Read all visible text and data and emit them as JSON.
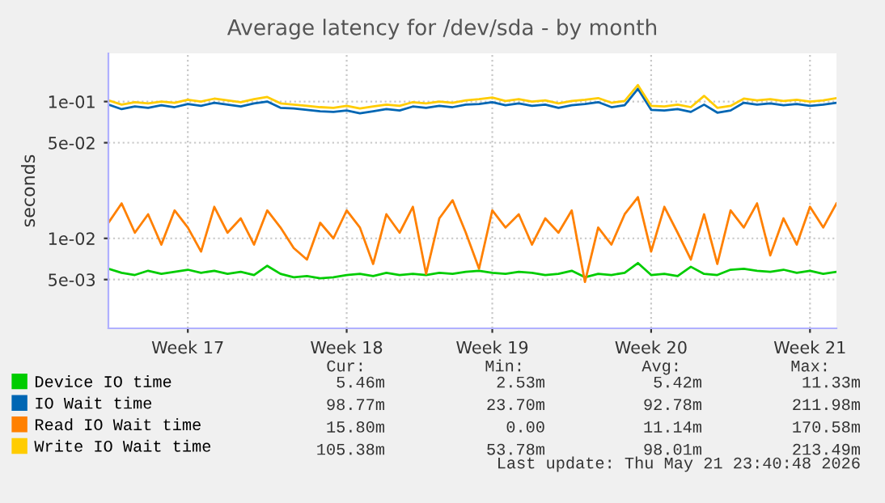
{
  "chart_data": {
    "type": "line",
    "title": "Average latency for /dev/sda - by month",
    "ylabel": "seconds",
    "log": "y",
    "grid": true,
    "legend": "bottom left",
    "marker": "none",
    "line_style": "solid",
    "categories": [
      null,
      null,
      null,
      null,
      null,
      null,
      "Week 17",
      null,
      null,
      null,
      null,
      null,
      null,
      null,
      null,
      null,
      null,
      null,
      "Week 18",
      null,
      null,
      null,
      null,
      null,
      null,
      null,
      null,
      null,
      null,
      "Week 19",
      null,
      null,
      null,
      null,
      null,
      null,
      null,
      null,
      null,
      null,
      null,
      "Week 20",
      null,
      null,
      null,
      null,
      null,
      null,
      null,
      null,
      null,
      null,
      null,
      "Week 21",
      null,
      null
    ],
    "ylim": [
      0.0022,
      0.225
    ],
    "yticks": [
      {
        "value": 0.005,
        "label": "5e-03"
      },
      {
        "value": 0.01,
        "label": "1e-02"
      },
      {
        "value": 0.05,
        "label": "5e-02"
      },
      {
        "value": 0.1,
        "label": "1e-01"
      }
    ],
    "series": [
      {
        "name": "Device IO time",
        "color": "#00cc00",
        "values": [
          0.006,
          0.0056,
          0.0054,
          0.0058,
          0.0055,
          0.0057,
          0.0059,
          0.0056,
          0.0058,
          0.0055,
          0.0057,
          0.0054,
          0.0063,
          0.0055,
          0.0052,
          0.0053,
          0.0051,
          0.0052,
          0.0054,
          0.0055,
          0.0053,
          0.0056,
          0.0054,
          0.0055,
          0.0054,
          0.0056,
          0.0055,
          0.0057,
          0.0058,
          0.0056,
          0.0055,
          0.0057,
          0.0056,
          0.0054,
          0.0055,
          0.0058,
          0.0052,
          0.0055,
          0.0054,
          0.0056,
          0.0066,
          0.0054,
          0.0055,
          0.0053,
          0.0062,
          0.0055,
          0.0054,
          0.0059,
          0.006,
          0.0058,
          0.0057,
          0.0059,
          0.0056,
          0.0058,
          0.0055,
          0.0057
        ]
      },
      {
        "name": "IO Wait time",
        "color": "#0066b3",
        "values": [
          0.095,
          0.088,
          0.092,
          0.09,
          0.094,
          0.091,
          0.096,
          0.093,
          0.098,
          0.095,
          0.092,
          0.097,
          0.1,
          0.09,
          0.089,
          0.087,
          0.085,
          0.084,
          0.086,
          0.082,
          0.085,
          0.088,
          0.086,
          0.092,
          0.09,
          0.093,
          0.091,
          0.095,
          0.096,
          0.099,
          0.094,
          0.097,
          0.093,
          0.095,
          0.09,
          0.094,
          0.096,
          0.099,
          0.091,
          0.094,
          0.124,
          0.087,
          0.086,
          0.088,
          0.084,
          0.095,
          0.083,
          0.086,
          0.098,
          0.095,
          0.097,
          0.094,
          0.096,
          0.093,
          0.095,
          0.098
        ]
      },
      {
        "name": "Read IO Wait time",
        "color": "#ff8000",
        "values": [
          0.013,
          0.018,
          0.011,
          0.015,
          0.009,
          0.016,
          0.012,
          0.008,
          0.017,
          0.011,
          0.014,
          0.009,
          0.016,
          0.012,
          0.0085,
          0.007,
          0.013,
          0.01,
          0.016,
          0.012,
          0.0065,
          0.015,
          0.011,
          0.017,
          0.0055,
          0.014,
          0.019,
          0.011,
          0.006,
          0.016,
          0.012,
          0.015,
          0.009,
          0.014,
          0.011,
          0.016,
          0.0048,
          0.012,
          0.009,
          0.015,
          0.02,
          0.008,
          0.017,
          0.011,
          0.007,
          0.015,
          0.0065,
          0.016,
          0.012,
          0.018,
          0.0075,
          0.014,
          0.009,
          0.017,
          0.012,
          0.018
        ]
      },
      {
        "name": "Write IO Wait time",
        "color": "#ffcc00",
        "values": [
          0.102,
          0.095,
          0.099,
          0.097,
          0.1,
          0.098,
          0.103,
          0.1,
          0.105,
          0.102,
          0.099,
          0.104,
          0.108,
          0.097,
          0.095,
          0.093,
          0.091,
          0.09,
          0.093,
          0.089,
          0.092,
          0.095,
          0.093,
          0.099,
          0.097,
          0.1,
          0.098,
          0.102,
          0.104,
          0.107,
          0.101,
          0.104,
          0.1,
          0.102,
          0.097,
          0.101,
          0.103,
          0.106,
          0.098,
          0.101,
          0.132,
          0.093,
          0.092,
          0.095,
          0.091,
          0.11,
          0.09,
          0.093,
          0.105,
          0.102,
          0.104,
          0.101,
          0.103,
          0.1,
          0.102,
          0.106
        ]
      }
    ],
    "annotations": [
      "Cur:",
      "Min:",
      "Avg:",
      "Max:",
      "5.46m",
      "2.53m",
      "5.42m",
      "11.33m",
      "98.77m",
      "23.70m",
      "92.78m",
      "211.98m",
      "15.80m",
      "0.00",
      "11.14m",
      "170.58m",
      "105.38m",
      "53.78m",
      "98.01m",
      "213.49m",
      "Last update: Thu May 21 23:40:48 2026"
    ]
  }
}
